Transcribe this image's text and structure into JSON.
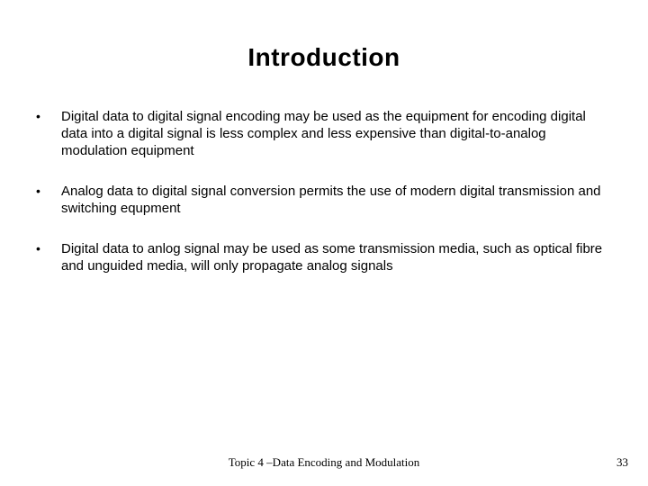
{
  "title": "Introduction",
  "bullets": [
    "Digital data to digital signal encoding may be used as the equipment for encoding digital data into a digital signal is less complex and less expensive than digital-to-analog  modulation equipment",
    "Analog data to digital signal conversion permits the use of modern digital transmission and switching equpment",
    "Digital data to anlog signal may be used as some transmission media, such as optical fibre and unguided media, will only propagate analog signals"
  ],
  "footer": "Topic 4 –Data Encoding and Modulation",
  "page_number": "33",
  "style": {
    "background_color": "#ffffff",
    "text_color": "#000000",
    "title_fontsize": 28,
    "title_weight": "bold",
    "body_fontsize": 15,
    "body_line_height": 19,
    "footer_fontsize": 13,
    "footer_font": "Times New Roman",
    "body_font": "Arial"
  }
}
